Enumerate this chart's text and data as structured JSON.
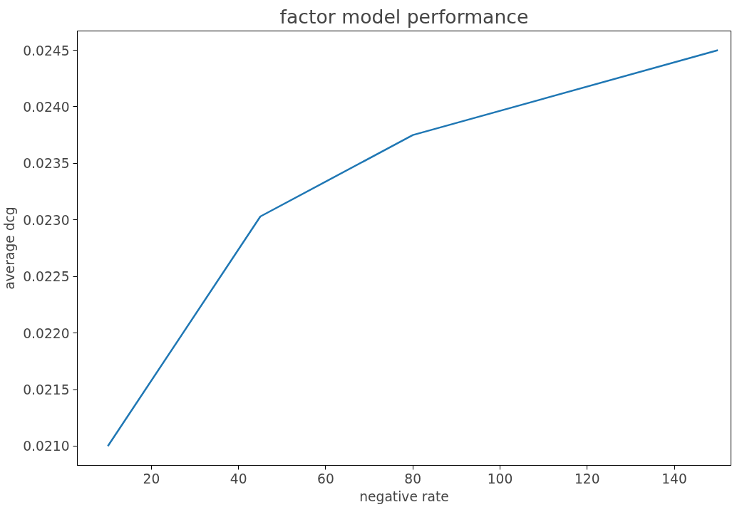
{
  "chart_data": {
    "type": "line",
    "title": "factor model performance",
    "xlabel": "negative rate",
    "ylabel": "average dcg",
    "x": [
      10,
      45,
      80,
      150
    ],
    "series": [
      {
        "color": "#1f77b4",
        "values": [
          0.021,
          0.02303,
          0.02375,
          0.0245
        ]
      }
    ],
    "xlim": [
      3,
      153
    ],
    "xticks": [
      20,
      40,
      60,
      80,
      100,
      120,
      140
    ],
    "ylim": [
      0.02083,
      0.02467
    ],
    "yticks": [
      {
        "value": 0.021,
        "label": "0.0210"
      },
      {
        "value": 0.0215,
        "label": "0.0215"
      },
      {
        "value": 0.022,
        "label": "0.0220"
      },
      {
        "value": 0.0225,
        "label": "0.0225"
      },
      {
        "value": 0.023,
        "label": "0.0230"
      },
      {
        "value": 0.0235,
        "label": "0.0235"
      },
      {
        "value": 0.024,
        "label": "0.0240"
      },
      {
        "value": 0.0245,
        "label": "0.0245"
      }
    ],
    "grid": false,
    "marker": "none",
    "line_style": "solid"
  }
}
